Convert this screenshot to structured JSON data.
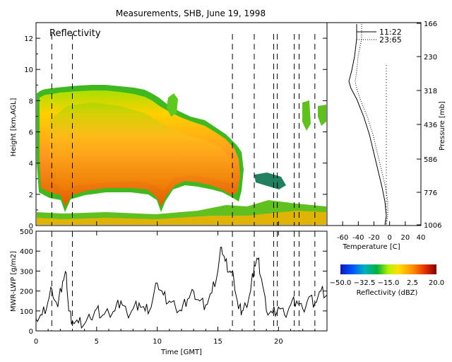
{
  "title": "Measurements, SHB, June 19, 1998",
  "chart_data": [
    {
      "type": "heatmap",
      "annotation": "Reflectivity",
      "xlabel": "",
      "ylabel": "Height [km,AGL]",
      "xlim": [
        0,
        24
      ],
      "ylim": [
        0,
        13
      ],
      "yticks": [
        0,
        2,
        4,
        6,
        8,
        10,
        12
      ],
      "xticks": [
        0,
        5,
        10,
        15,
        20
      ],
      "dashed_lines_x": [
        1.3,
        3.0,
        16.2,
        18.0,
        19.6,
        19.9,
        21.3,
        21.7,
        23.0
      ],
      "description_layers": [
        {
          "x_start": 0.2,
          "x_end": 12.5,
          "base": 1.0,
          "top": 8.5
        },
        {
          "x_start": 12.5,
          "x_end": 17.0,
          "base": 1.5,
          "top": 7.0
        },
        {
          "x_start": 0.2,
          "x_end": 24.0,
          "base": 0.0,
          "top": 0.7
        }
      ]
    },
    {
      "type": "line",
      "xlabel": "Temperature [C]",
      "ylabel": "",
      "right_label": "Pressure [mb]",
      "xlim": [
        -80,
        40
      ],
      "xticks": [
        -60,
        -40,
        -20,
        0,
        20,
        40
      ],
      "right_ticks": [
        "166",
        "230",
        "318",
        "436",
        "586",
        "776",
        "1006"
      ],
      "series": [
        {
          "name": "11:22",
          "style": "solid"
        },
        {
          "name": "23:65",
          "style": "dotted"
        }
      ]
    },
    {
      "type": "line",
      "xlabel": "Time [GMT]",
      "ylabel": "MWR-LWP [g/m2]",
      "xlim": [
        0,
        24
      ],
      "ylim": [
        0,
        500
      ],
      "xticks": [
        0,
        5,
        10,
        15,
        20
      ],
      "yticks": [
        0,
        100,
        200,
        300,
        400,
        500
      ],
      "dashed_lines_x": [
        1.3,
        3.0,
        16.2,
        18.0,
        19.6,
        19.9,
        21.3,
        21.7,
        23.0
      ],
      "x": [
        0.0,
        0.5,
        1.0,
        1.3,
        1.8,
        2.2,
        2.5,
        2.7,
        3.0,
        3.5,
        4.0,
        4.5,
        5.0,
        5.5,
        6.0,
        6.5,
        7.0,
        7.5,
        8.0,
        8.5,
        9.0,
        9.5,
        10.0,
        10.5,
        11.0,
        11.5,
        12.0,
        12.5,
        13.0,
        13.5,
        14.0,
        14.5,
        15.0,
        15.3,
        15.6,
        16.0,
        16.3,
        16.7,
        17.0,
        17.3,
        17.7,
        18.0,
        18.3,
        18.6,
        19.0,
        19.5,
        20.0,
        20.5,
        21.0,
        21.5,
        22.0,
        22.5,
        23.0,
        23.5,
        24.0
      ],
      "y": [
        60,
        80,
        150,
        210,
        120,
        250,
        290,
        100,
        50,
        40,
        35,
        60,
        110,
        80,
        90,
        100,
        150,
        90,
        110,
        140,
        100,
        120,
        240,
        180,
        150,
        120,
        100,
        160,
        200,
        150,
        130,
        190,
        300,
        420,
        350,
        300,
        270,
        110,
        100,
        130,
        200,
        330,
        360,
        260,
        100,
        90,
        120,
        80,
        130,
        150,
        110,
        170,
        140,
        200,
        180
      ]
    },
    {
      "type": "heatmap",
      "colorbar": true,
      "xlabel": "Reflectivity (dBZ)",
      "tick_labels": [
        "−50.0",
        "−32.5",
        "−15.0",
        "2.5",
        "20.0"
      ],
      "vmin": -50,
      "vmax": 20
    }
  ]
}
